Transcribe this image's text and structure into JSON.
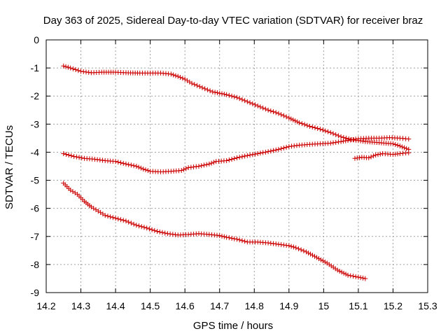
{
  "chart_data": {
    "type": "scatter",
    "title": "Day 363 of 2025, Sidereal Day-to-day VTEC variation (SDTVAR) for receiver braz",
    "xlabel": "GPS time / hours",
    "ylabel": "SDTVAR / TECUs",
    "xlim": [
      14.2,
      15.3
    ],
    "ylim": [
      -9,
      0
    ],
    "xticks": [
      14.2,
      14.3,
      14.4,
      14.5,
      14.6,
      14.7,
      14.8,
      14.9,
      15,
      15.1,
      15.2,
      15.3
    ],
    "xtick_labels": [
      "14.2",
      "14.3",
      "14.4",
      "14.5",
      "14.6",
      "14.7",
      "14.8",
      "14.9",
      "15",
      "15.1",
      "15.2",
      "15.3"
    ],
    "yticks": [
      0,
      -1,
      -2,
      -3,
      -4,
      -5,
      -6,
      -7,
      -8,
      -9
    ],
    "ytick_labels": [
      "0",
      "-1",
      "-2",
      "-3",
      "-4",
      "-5",
      "-6",
      "-7",
      "-8",
      "-9"
    ],
    "grid": true,
    "marker": "+",
    "marker_color": "#cc0000",
    "series": [
      {
        "name": "track-1",
        "points": [
          [
            14.25,
            -0.93
          ],
          [
            14.27,
            -1.0
          ],
          [
            14.3,
            -1.12
          ],
          [
            14.33,
            -1.17
          ],
          [
            14.36,
            -1.15
          ],
          [
            14.4,
            -1.15
          ],
          [
            14.43,
            -1.17
          ],
          [
            14.47,
            -1.18
          ],
          [
            14.5,
            -1.18
          ],
          [
            14.53,
            -1.18
          ],
          [
            14.56,
            -1.22
          ],
          [
            14.58,
            -1.3
          ],
          [
            14.6,
            -1.4
          ],
          [
            14.62,
            -1.55
          ],
          [
            14.65,
            -1.7
          ],
          [
            14.68,
            -1.85
          ],
          [
            14.72,
            -1.95
          ],
          [
            14.75,
            -2.05
          ],
          [
            14.78,
            -2.2
          ],
          [
            14.81,
            -2.35
          ],
          [
            14.84,
            -2.5
          ],
          [
            14.87,
            -2.62
          ],
          [
            14.9,
            -2.78
          ],
          [
            14.93,
            -2.95
          ],
          [
            14.96,
            -3.08
          ],
          [
            14.99,
            -3.18
          ],
          [
            15.02,
            -3.3
          ],
          [
            15.05,
            -3.45
          ],
          [
            15.08,
            -3.55
          ],
          [
            15.12,
            -3.62
          ],
          [
            15.16,
            -3.66
          ],
          [
            15.2,
            -3.7
          ],
          [
            15.22,
            -3.78
          ],
          [
            15.245,
            -3.9
          ]
        ]
      },
      {
        "name": "track-2",
        "points": [
          [
            14.25,
            -4.05
          ],
          [
            14.28,
            -4.15
          ],
          [
            14.31,
            -4.22
          ],
          [
            14.34,
            -4.25
          ],
          [
            14.37,
            -4.3
          ],
          [
            14.4,
            -4.33
          ],
          [
            14.43,
            -4.42
          ],
          [
            14.46,
            -4.5
          ],
          [
            14.48,
            -4.6
          ],
          [
            14.5,
            -4.68
          ],
          [
            14.53,
            -4.7
          ],
          [
            14.56,
            -4.68
          ],
          [
            14.59,
            -4.65
          ],
          [
            14.61,
            -4.55
          ],
          [
            14.64,
            -4.5
          ],
          [
            14.67,
            -4.42
          ],
          [
            14.69,
            -4.33
          ],
          [
            14.72,
            -4.3
          ],
          [
            14.75,
            -4.2
          ],
          [
            14.78,
            -4.12
          ],
          [
            14.81,
            -4.05
          ],
          [
            14.84,
            -3.98
          ],
          [
            14.87,
            -3.9
          ],
          [
            14.9,
            -3.8
          ],
          [
            14.93,
            -3.75
          ],
          [
            14.96,
            -3.72
          ],
          [
            14.99,
            -3.7
          ],
          [
            15.02,
            -3.68
          ],
          [
            15.05,
            -3.62
          ],
          [
            15.07,
            -3.58
          ],
          [
            15.1,
            -3.52
          ],
          [
            15.13,
            -3.5
          ],
          [
            15.16,
            -3.5
          ],
          [
            15.19,
            -3.48
          ],
          [
            15.22,
            -3.5
          ],
          [
            15.245,
            -3.53
          ]
        ]
      },
      {
        "name": "track-3",
        "points": [
          [
            14.25,
            -5.1
          ],
          [
            14.27,
            -5.35
          ],
          [
            14.29,
            -5.5
          ],
          [
            14.31,
            -5.75
          ],
          [
            14.33,
            -5.95
          ],
          [
            14.35,
            -6.1
          ],
          [
            14.37,
            -6.25
          ],
          [
            14.4,
            -6.35
          ],
          [
            14.43,
            -6.45
          ],
          [
            14.46,
            -6.6
          ],
          [
            14.49,
            -6.7
          ],
          [
            14.52,
            -6.82
          ],
          [
            14.55,
            -6.9
          ],
          [
            14.58,
            -6.95
          ],
          [
            14.61,
            -6.93
          ],
          [
            14.64,
            -6.9
          ],
          [
            14.67,
            -6.93
          ],
          [
            14.7,
            -6.97
          ],
          [
            14.72,
            -7.03
          ],
          [
            14.75,
            -7.1
          ],
          [
            14.78,
            -7.2
          ],
          [
            14.81,
            -7.2
          ],
          [
            14.84,
            -7.23
          ],
          [
            14.87,
            -7.28
          ],
          [
            14.9,
            -7.33
          ],
          [
            14.92,
            -7.4
          ],
          [
            14.95,
            -7.55
          ],
          [
            14.98,
            -7.75
          ],
          [
            15.01,
            -7.95
          ],
          [
            15.04,
            -8.2
          ],
          [
            15.07,
            -8.38
          ],
          [
            15.1,
            -8.45
          ],
          [
            15.12,
            -8.5
          ]
        ]
      },
      {
        "name": "track-4",
        "points": [
          [
            15.09,
            -4.22
          ],
          [
            15.11,
            -4.18
          ],
          [
            15.13,
            -4.2
          ],
          [
            15.15,
            -4.1
          ],
          [
            15.17,
            -4.05
          ],
          [
            15.2,
            -4.08
          ],
          [
            15.22,
            -4.05
          ],
          [
            15.245,
            -4.02
          ]
        ]
      }
    ]
  }
}
